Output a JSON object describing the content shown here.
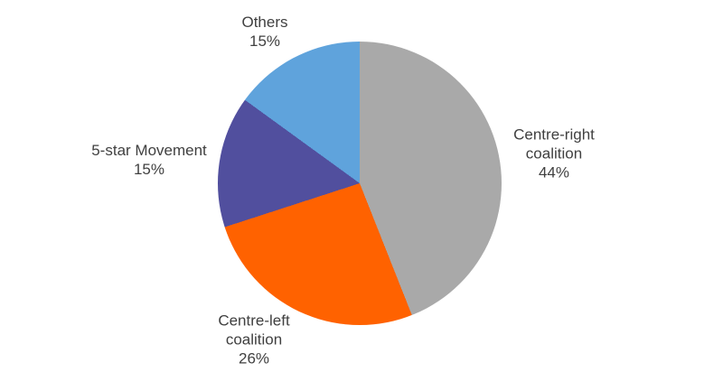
{
  "chart_data": {
    "type": "pie",
    "title": "",
    "unit": "%",
    "start_angle_deg": 0,
    "direction": "clockwise",
    "legend_position": "none",
    "label_style": "outside, category name with percentage below",
    "background_color": "#ffffff",
    "text_color": "#404040",
    "categories": [
      "Centre-right coalition",
      "Centre-left coalition",
      "5-star Movement",
      "Others"
    ],
    "values": [
      44,
      26,
      15,
      15
    ],
    "slices": [
      {
        "label": "Centre-right coalition",
        "value": 44,
        "pct_label": "44%",
        "color": "#a9a9a9",
        "label_lines": [
          "Centre-right",
          "coalition",
          "44%"
        ]
      },
      {
        "label": "Centre-left coalition",
        "value": 26,
        "pct_label": "26%",
        "color": "#ff6200",
        "label_lines": [
          "Centre-left",
          "coalition",
          "26%"
        ]
      },
      {
        "label": "5-star Movement",
        "value": 15,
        "pct_label": "15%",
        "color": "#514f9e",
        "label_lines": [
          "5-star Movement",
          "15%"
        ]
      },
      {
        "label": "Others",
        "value": 15,
        "pct_label": "15%",
        "color": "#5fa3dc",
        "label_lines": [
          "Others",
          "15%"
        ]
      }
    ]
  }
}
